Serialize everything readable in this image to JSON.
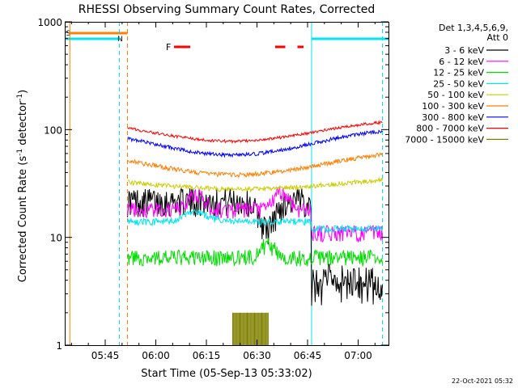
{
  "chart_data": {
    "type": "line",
    "title": "RHESSI Observing Summary Count Rates, Corrected",
    "xlabel": "Start Time (05-Sep-13 05:33:02)",
    "ylabel_main": "Corrected Count Rate (s",
    "ylabel_sup1": "-1",
    "ylabel_mid": " detector",
    "ylabel_sup2": "-1",
    "ylabel_end": ")",
    "yscale": "log",
    "ylim": [
      1,
      1000
    ],
    "xlim_minutes": [
      5.55,
      7.15
    ],
    "x_ticks": [
      {
        "t": 5.75,
        "label": "05:45"
      },
      {
        "t": 6.0,
        "label": "06:00"
      },
      {
        "t": 6.25,
        "label": "06:15"
      },
      {
        "t": 6.5,
        "label": "06:30"
      },
      {
        "t": 6.75,
        "label": "06:45"
      },
      {
        "t": 7.0,
        "label": "07:00"
      }
    ],
    "y_ticks": [
      {
        "v": 1,
        "label": "1"
      },
      {
        "v": 10,
        "label": "10"
      },
      {
        "v": 100,
        "label": "100"
      },
      {
        "v": 1000,
        "label": "1000"
      }
    ],
    "legend_header": [
      "Det 1,3,4,5,6,9,",
      "Att 0"
    ],
    "series": [
      {
        "name": "3 - 6 keV",
        "color": "#000000"
      },
      {
        "name": "6 - 12 keV",
        "color": "#ff00ff"
      },
      {
        "name": "12 - 25 keV",
        "color": "#00dd00"
      },
      {
        "name": "25 - 50 keV",
        "color": "#00e5ee"
      },
      {
        "name": "50 - 100 keV",
        "color": "#cccc00"
      },
      {
        "name": "100 - 300 keV",
        "color": "#ff7f00"
      },
      {
        "name": "300 - 800 keV",
        "color": "#0000ff"
      },
      {
        "name": "800 - 7000 keV",
        "color": "#ff0000"
      },
      {
        "name": "7000 - 15000 keV",
        "color": "#808000"
      }
    ],
    "flags": {
      "F_label": "F",
      "S_label": "S",
      "N_label": "N"
    },
    "footer_date": "22-Oct-2021 05:32"
  }
}
